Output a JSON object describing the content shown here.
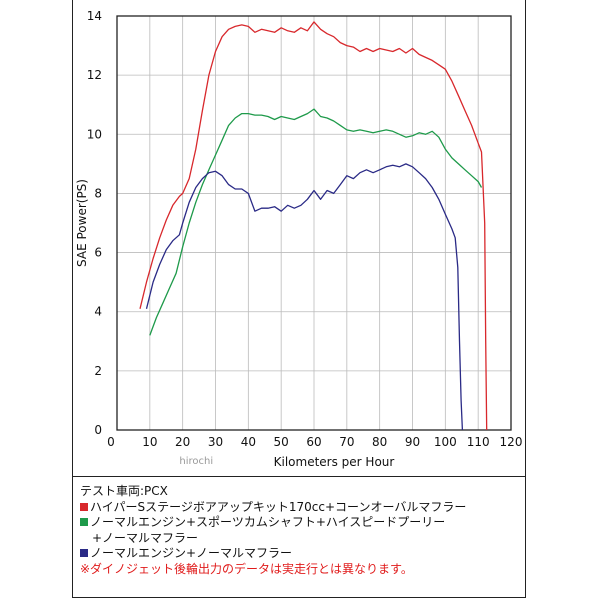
{
  "chart_data": {
    "type": "line",
    "xlabel": "Kilometers per Hour",
    "ylabel": "SAE Power(PS)",
    "xlim": [
      0,
      120
    ],
    "ylim": [
      0,
      14
    ],
    "xticks": [
      0,
      10,
      20,
      30,
      40,
      50,
      60,
      70,
      80,
      90,
      100,
      110,
      120
    ],
    "yticks": [
      0,
      2,
      4,
      6,
      8,
      10,
      12,
      14
    ],
    "watermark": "hirochi",
    "series": [
      {
        "color": "#d8282c",
        "x": [
          7,
          9,
          11,
          13,
          15,
          17,
          19,
          20,
          22,
          24,
          26,
          28,
          30,
          32,
          34,
          36,
          38,
          40,
          42,
          44,
          46,
          48,
          50,
          52,
          54,
          56,
          58,
          60,
          62,
          64,
          66,
          68,
          70,
          72,
          74,
          76,
          78,
          80,
          82,
          84,
          86,
          88,
          90,
          92,
          94,
          96,
          98,
          100,
          102,
          104,
          106,
          108,
          110,
          111,
          112,
          112.3,
          112.6
        ],
        "y": [
          4.1,
          5.0,
          5.8,
          6.5,
          7.1,
          7.6,
          7.9,
          8.0,
          8.5,
          9.5,
          10.8,
          12.0,
          12.8,
          13.3,
          13.55,
          13.65,
          13.7,
          13.65,
          13.45,
          13.55,
          13.5,
          13.45,
          13.6,
          13.5,
          13.45,
          13.6,
          13.5,
          13.8,
          13.55,
          13.4,
          13.3,
          13.1,
          13.0,
          12.95,
          12.8,
          12.9,
          12.8,
          12.9,
          12.85,
          12.8,
          12.9,
          12.75,
          12.9,
          12.7,
          12.6,
          12.5,
          12.35,
          12.2,
          11.8,
          11.3,
          10.8,
          10.3,
          9.7,
          9.4,
          7.0,
          3.0,
          0.0
        ]
      },
      {
        "color": "#1e9a4a",
        "x": [
          10,
          12,
          14,
          16,
          18,
          20,
          22,
          24,
          26,
          28,
          30,
          32,
          34,
          36,
          38,
          40,
          42,
          44,
          46,
          48,
          50,
          52,
          54,
          56,
          58,
          60,
          62,
          64,
          66,
          68,
          70,
          72,
          74,
          76,
          78,
          80,
          82,
          84,
          86,
          88,
          90,
          92,
          94,
          96,
          98,
          100,
          102,
          104,
          106,
          108,
          110,
          111
        ],
        "y": [
          3.2,
          3.8,
          4.3,
          4.8,
          5.3,
          6.2,
          7.0,
          7.7,
          8.3,
          8.8,
          9.3,
          9.8,
          10.3,
          10.55,
          10.7,
          10.7,
          10.65,
          10.65,
          10.6,
          10.5,
          10.6,
          10.55,
          10.5,
          10.6,
          10.7,
          10.85,
          10.6,
          10.55,
          10.45,
          10.3,
          10.15,
          10.1,
          10.15,
          10.1,
          10.05,
          10.1,
          10.15,
          10.1,
          10.0,
          9.9,
          9.95,
          10.05,
          10.0,
          10.1,
          9.9,
          9.5,
          9.2,
          9.0,
          8.8,
          8.6,
          8.4,
          8.2
        ]
      },
      {
        "color": "#2a2a86",
        "x": [
          9,
          11,
          13,
          15,
          17,
          19,
          20,
          22,
          24,
          26,
          28,
          30,
          32,
          34,
          36,
          38,
          40,
          42,
          44,
          46,
          48,
          50,
          52,
          54,
          56,
          58,
          60,
          62,
          64,
          66,
          68,
          70,
          72,
          74,
          76,
          78,
          80,
          82,
          84,
          86,
          88,
          90,
          92,
          94,
          96,
          98,
          100,
          102,
          103,
          103.8,
          104.3,
          104.8,
          105.2
        ],
        "y": [
          4.1,
          5.0,
          5.6,
          6.1,
          6.4,
          6.6,
          7.0,
          7.7,
          8.2,
          8.5,
          8.7,
          8.75,
          8.6,
          8.3,
          8.15,
          8.15,
          8.0,
          7.4,
          7.5,
          7.5,
          7.55,
          7.4,
          7.6,
          7.5,
          7.6,
          7.8,
          8.1,
          7.8,
          8.1,
          8.0,
          8.3,
          8.6,
          8.5,
          8.7,
          8.8,
          8.7,
          8.8,
          8.9,
          8.95,
          8.9,
          9.0,
          8.9,
          8.7,
          8.5,
          8.2,
          7.8,
          7.3,
          6.8,
          6.5,
          5.5,
          3.0,
          1.0,
          0.0
        ]
      }
    ]
  },
  "notes": {
    "vehicle": "テスト車両:PCX",
    "legend": [
      {
        "color": "#d8282c",
        "text": "ハイパーSステージボアアップキット170cc+コーンオーバルマフラー"
      },
      {
        "color": "#1e9a4a",
        "text": "ノーマルエンジン+スポーツカムシャフト+ハイスピードプーリー"
      },
      {
        "color": "",
        "text": "+ノーマルマフラー"
      },
      {
        "color": "#2a2a86",
        "text": "ノーマルエンジン+ノーマルマフラー"
      }
    ],
    "warning": "※ダイノジェット後輪出力のデータは実走行とは異なります。"
  }
}
